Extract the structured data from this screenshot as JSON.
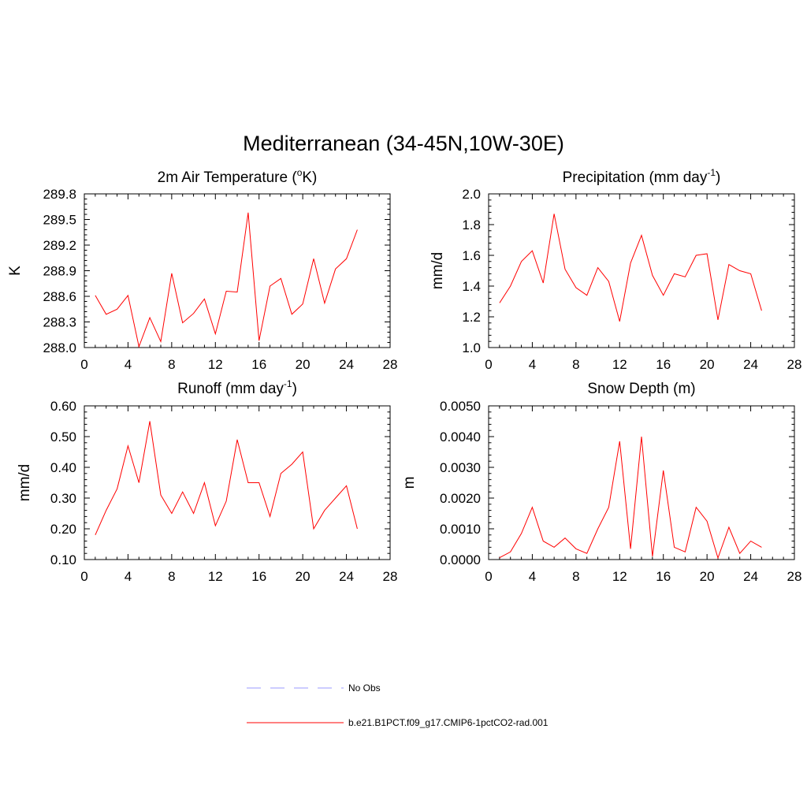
{
  "figure": {
    "title": "Mediterranean (34-45N,10W-30E)"
  },
  "colors": {
    "model_line": "#ff0000",
    "obs_line": "#9999ff",
    "axis": "#000000"
  },
  "legend": {
    "entries": [
      {
        "label": "No Obs",
        "style": "dashed",
        "color": "#9999ff"
      },
      {
        "label": "b.e21.B1PCT.f09_g17.CMIP6-1pctCO2-rad.001",
        "style": "solid",
        "color": "#ff0000"
      }
    ]
  },
  "chart_data": [
    {
      "type": "line",
      "title_main": "2m Air Temperature (",
      "title_sup_before": "o",
      "title_after": "K)",
      "ylabel": "K",
      "xlim": [
        0,
        28
      ],
      "xticks": [
        "0",
        "4",
        "8",
        "12",
        "16",
        "20",
        "24",
        "28"
      ],
      "ylim": [
        288.0,
        289.8
      ],
      "yticks": [
        "288.0",
        "288.3",
        "288.6",
        "288.9",
        "289.2",
        "289.5",
        "289.8"
      ],
      "series": [
        {
          "x": [
            1,
            2,
            3,
            4,
            5,
            6,
            7,
            8,
            9,
            10,
            11,
            12,
            13,
            14,
            15,
            16,
            17,
            18,
            19,
            20,
            21,
            22,
            23,
            24,
            25
          ],
          "values": [
            288.61,
            288.39,
            288.45,
            288.61,
            288.01,
            288.35,
            288.07,
            288.87,
            288.29,
            288.4,
            288.57,
            288.16,
            288.66,
            288.65,
            289.58,
            288.08,
            288.72,
            288.81,
            288.39,
            288.51,
            289.04,
            288.52,
            288.92,
            289.04,
            289.38
          ]
        }
      ]
    },
    {
      "type": "line",
      "title_main": "Precipitation (mm day",
      "title_sup_after": "-1",
      "title_after": ")",
      "ylabel": "mm/d",
      "xlim": [
        0,
        28
      ],
      "xticks": [
        "0",
        "4",
        "8",
        "12",
        "16",
        "20",
        "24",
        "28"
      ],
      "ylim": [
        1.0,
        2.0
      ],
      "yticks": [
        "1.0",
        "1.2",
        "1.4",
        "1.6",
        "1.8",
        "2.0"
      ],
      "series": [
        {
          "x": [
            1,
            2,
            3,
            4,
            5,
            6,
            7,
            8,
            9,
            10,
            11,
            12,
            13,
            14,
            15,
            16,
            17,
            18,
            19,
            20,
            21,
            22,
            23,
            24,
            25
          ],
          "values": [
            1.29,
            1.4,
            1.56,
            1.63,
            1.42,
            1.87,
            1.51,
            1.39,
            1.34,
            1.52,
            1.43,
            1.17,
            1.55,
            1.73,
            1.47,
            1.34,
            1.48,
            1.46,
            1.6,
            1.61,
            1.18,
            1.54,
            1.5,
            1.48,
            1.24
          ]
        }
      ]
    },
    {
      "type": "line",
      "title_main": "Runoff (mm day",
      "title_sup_after": "-1",
      "title_after": ")",
      "ylabel": "mm/d",
      "xlim": [
        0,
        28
      ],
      "xticks": [
        "0",
        "4",
        "8",
        "12",
        "16",
        "20",
        "24",
        "28"
      ],
      "ylim": [
        0.1,
        0.6
      ],
      "yticks": [
        "0.10",
        "0.20",
        "0.30",
        "0.40",
        "0.50",
        "0.60"
      ],
      "series": [
        {
          "x": [
            1,
            2,
            3,
            4,
            5,
            6,
            7,
            8,
            9,
            10,
            11,
            12,
            13,
            14,
            15,
            16,
            17,
            18,
            19,
            20,
            21,
            22,
            23,
            24,
            25
          ],
          "values": [
            0.18,
            0.26,
            0.33,
            0.47,
            0.35,
            0.55,
            0.31,
            0.25,
            0.32,
            0.25,
            0.35,
            0.21,
            0.29,
            0.49,
            0.35,
            0.35,
            0.24,
            0.38,
            0.41,
            0.45,
            0.2,
            0.26,
            0.3,
            0.34,
            0.2
          ]
        }
      ]
    },
    {
      "type": "line",
      "title_main": "Snow Depth (m)",
      "ylabel": "m",
      "xlim": [
        0,
        28
      ],
      "xticks": [
        "0",
        "4",
        "8",
        "12",
        "16",
        "20",
        "24",
        "28"
      ],
      "ylim": [
        0.0,
        0.005
      ],
      "yticks": [
        "0.0000",
        "0.0010",
        "0.0020",
        "0.0030",
        "0.0040",
        "0.0050"
      ],
      "series": [
        {
          "x": [
            1,
            2,
            3,
            4,
            5,
            6,
            7,
            8,
            9,
            10,
            11,
            12,
            13,
            14,
            15,
            16,
            17,
            18,
            19,
            20,
            21,
            22,
            23,
            24,
            25
          ],
          "values": [
            6e-05,
            0.00025,
            0.00085,
            0.0017,
            0.0006,
            0.0004,
            0.0007,
            0.00035,
            0.0002,
            0.001,
            0.0017,
            0.00385,
            0.00035,
            0.004,
            0.0001,
            0.0029,
            0.0004,
            0.00025,
            0.0017,
            0.00125,
            5e-05,
            0.00105,
            0.0002,
            0.0006,
            0.0004
          ]
        }
      ]
    }
  ]
}
